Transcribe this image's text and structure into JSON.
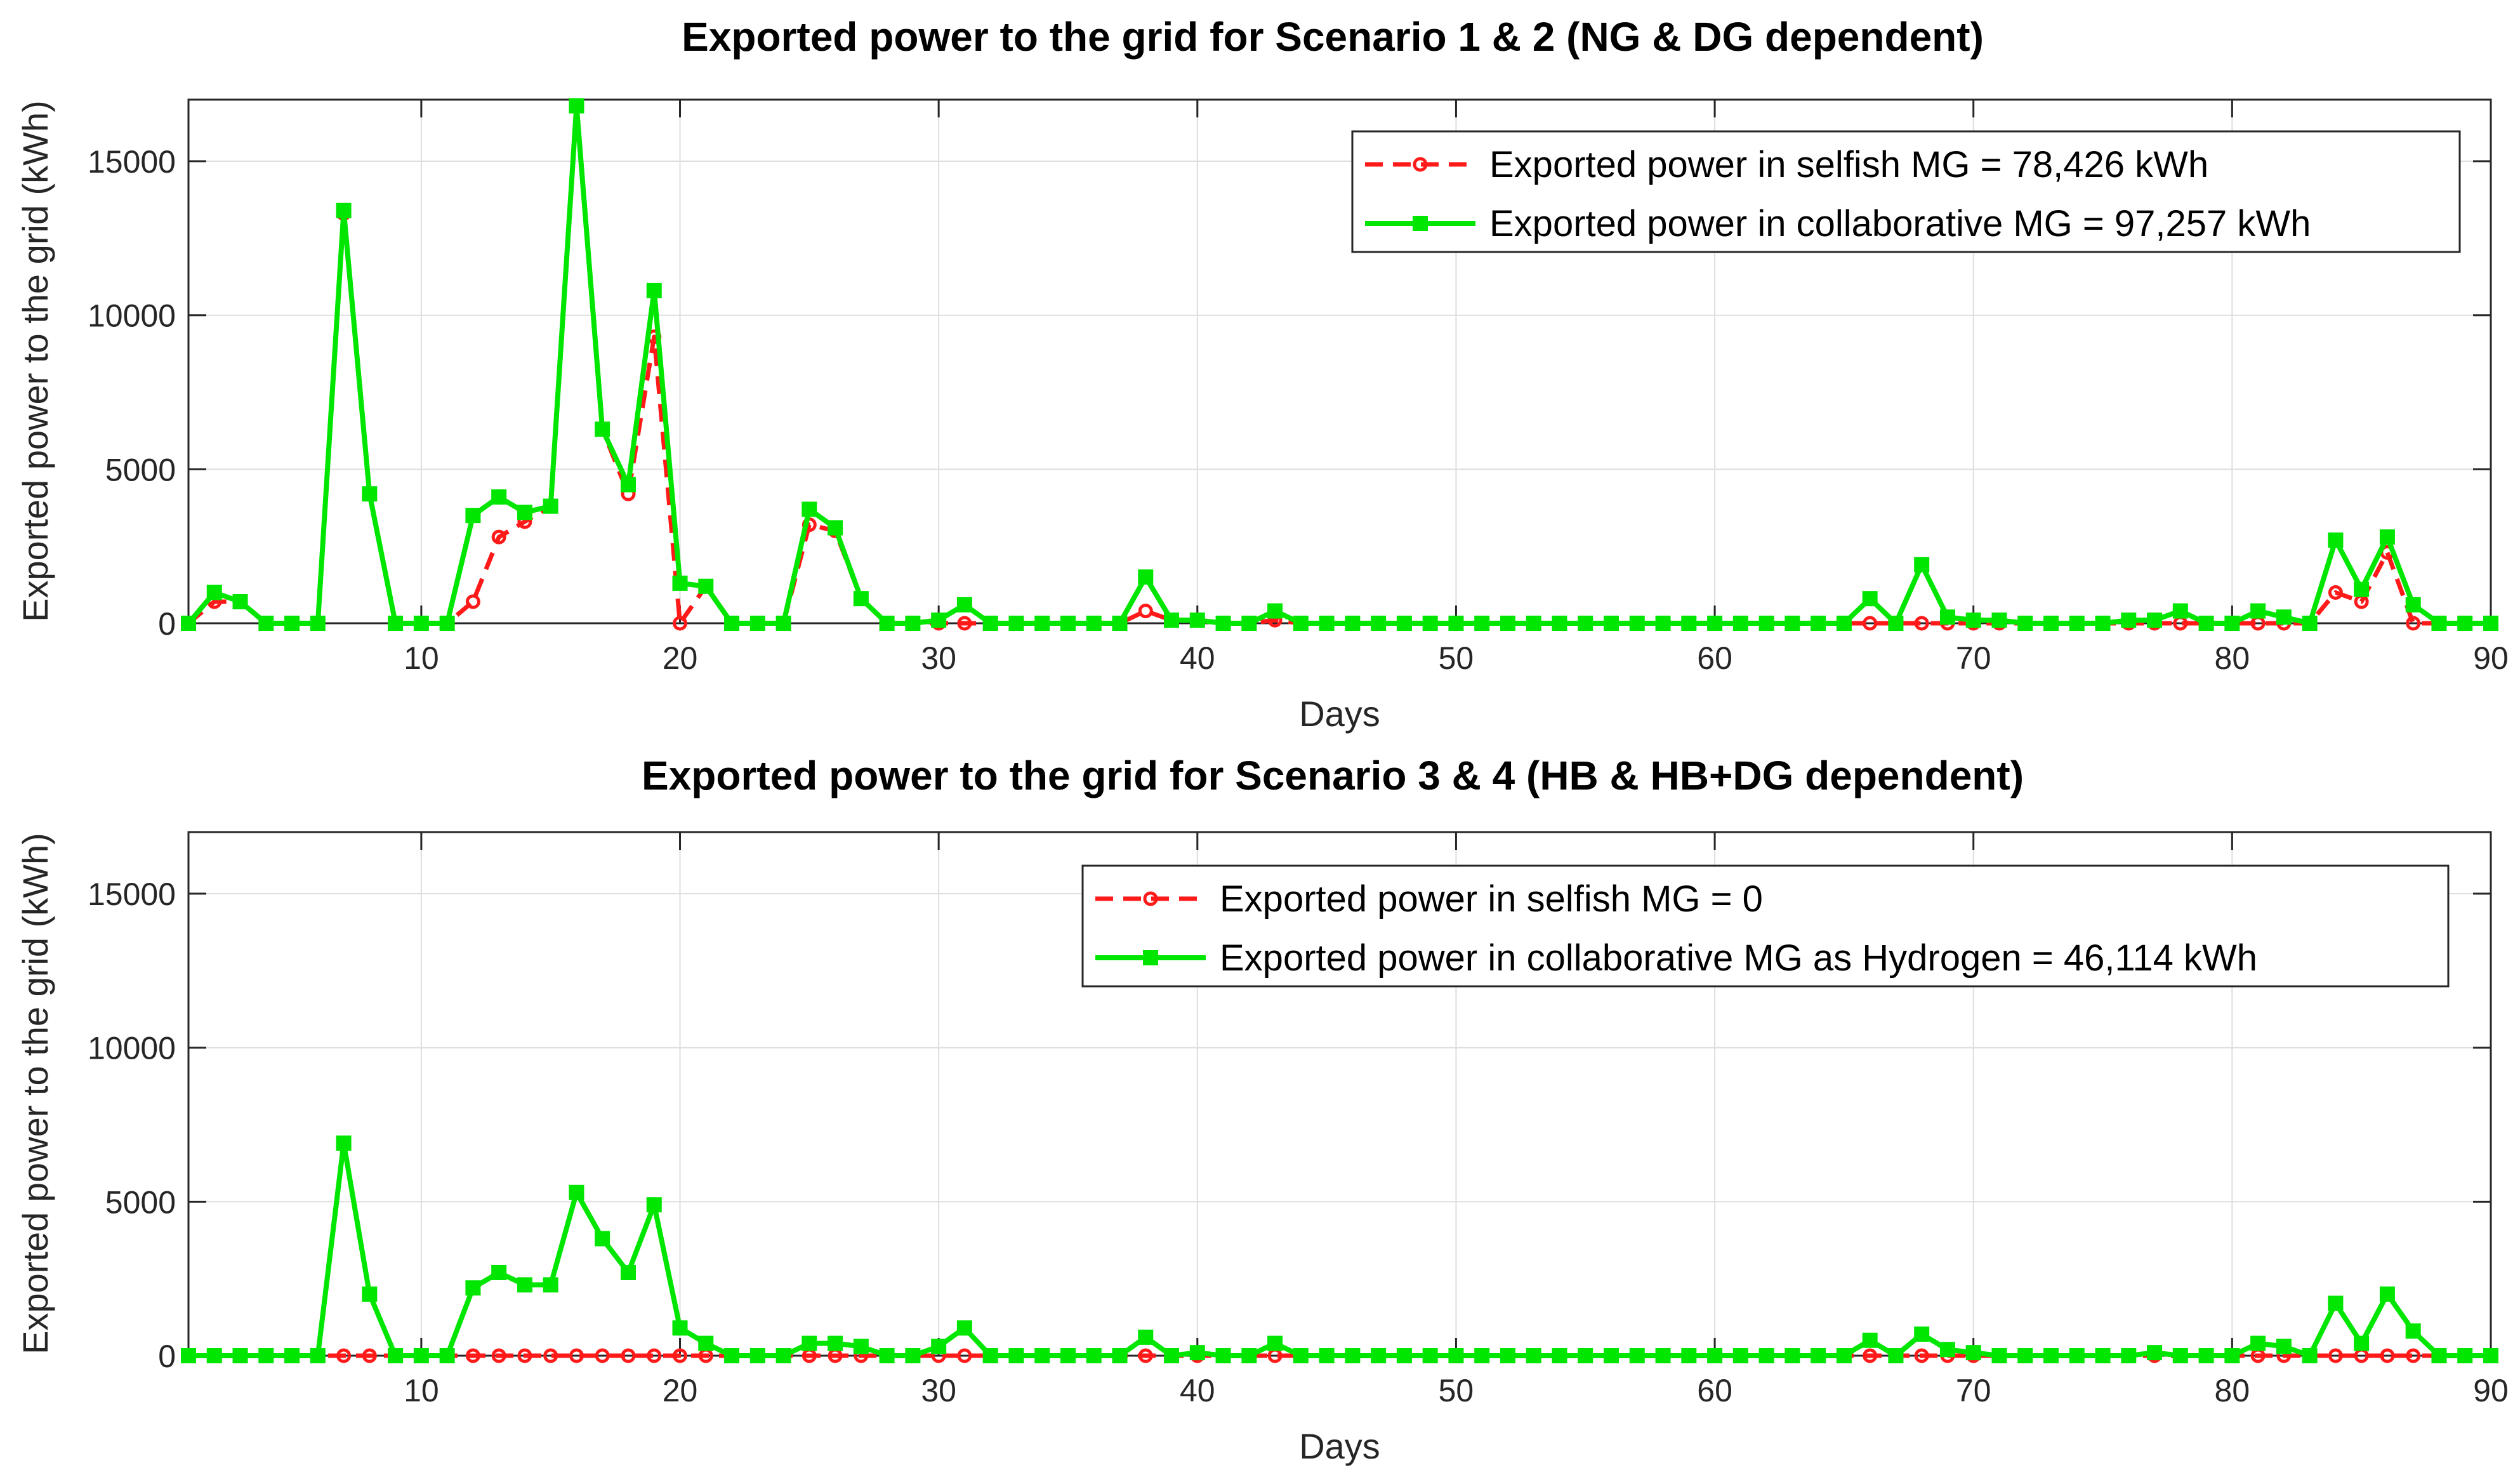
{
  "chart_data": [
    {
      "type": "line",
      "title": "Exported power to the grid for Scenario 1 & 2 (NG & DG dependent)",
      "xlabel": "Days",
      "ylabel": "Exported power to the grid (kWh)",
      "xlim": [
        1,
        90
      ],
      "ylim": [
        0,
        17000
      ],
      "xticks": [
        10,
        20,
        30,
        40,
        50,
        60,
        70,
        80,
        90
      ],
      "yticks": [
        0,
        5000,
        10000,
        15000
      ],
      "grid": true,
      "legend_position": "top-right",
      "x": [
        1,
        2,
        3,
        4,
        5,
        6,
        7,
        8,
        9,
        10,
        11,
        12,
        13,
        14,
        15,
        16,
        17,
        18,
        19,
        20,
        21,
        22,
        23,
        24,
        25,
        26,
        27,
        28,
        29,
        30,
        31,
        32,
        33,
        34,
        35,
        36,
        37,
        38,
        39,
        40,
        41,
        42,
        43,
        44,
        45,
        46,
        47,
        48,
        49,
        50,
        51,
        52,
        53,
        54,
        55,
        56,
        57,
        58,
        59,
        60,
        61,
        62,
        63,
        64,
        65,
        66,
        67,
        68,
        69,
        70,
        71,
        72,
        73,
        74,
        75,
        76,
        77,
        78,
        79,
        80,
        81,
        82,
        83,
        84,
        85,
        86,
        87,
        88,
        89,
        90
      ],
      "series": [
        {
          "name": "Exported power in selfish MG = 78,426 kWh",
          "color": "#ff1a1a",
          "style": "dashed",
          "marker": "circle",
          "values": [
            0,
            700,
            700,
            0,
            0,
            0,
            13300,
            4200,
            0,
            0,
            0,
            700,
            2800,
            3300,
            3800,
            16800,
            6300,
            4200,
            9300,
            0,
            1200,
            0,
            0,
            0,
            3200,
            3000,
            800,
            0,
            0,
            0,
            0,
            0,
            0,
            0,
            0,
            0,
            0,
            400,
            100,
            100,
            0,
            0,
            100,
            0,
            0,
            0,
            0,
            0,
            0,
            0,
            0,
            0,
            0,
            0,
            0,
            0,
            0,
            0,
            0,
            0,
            0,
            0,
            0,
            0,
            0,
            0,
            0,
            0,
            0,
            0,
            0,
            0,
            0,
            0,
            0,
            0,
            0,
            0,
            0,
            0,
            0,
            0,
            0,
            1000,
            700,
            2300,
            0,
            0,
            0,
            0
          ]
        },
        {
          "name": "Exported power in collaborative MG = 97,257 kWh",
          "color": "#00e600",
          "style": "solid",
          "marker": "square",
          "values": [
            0,
            1000,
            700,
            0,
            0,
            0,
            13400,
            4200,
            0,
            0,
            0,
            3500,
            4100,
            3600,
            3800,
            16800,
            6300,
            4500,
            10800,
            1300,
            1200,
            0,
            0,
            0,
            3700,
            3100,
            800,
            0,
            0,
            100,
            600,
            0,
            0,
            0,
            0,
            0,
            0,
            1500,
            100,
            100,
            0,
            0,
            400,
            0,
            0,
            0,
            0,
            0,
            0,
            0,
            0,
            0,
            0,
            0,
            0,
            0,
            0,
            0,
            0,
            0,
            0,
            0,
            0,
            0,
            0,
            800,
            0,
            1900,
            200,
            100,
            100,
            0,
            0,
            0,
            0,
            100,
            100,
            400,
            0,
            0,
            400,
            200,
            0,
            2700,
            1100,
            2800,
            600,
            0,
            0,
            0
          ]
        }
      ]
    },
    {
      "type": "line",
      "title": "Exported power to the grid for Scenario 3 & 4 (HB & HB+DG dependent)",
      "xlabel": "Days",
      "ylabel": "Exported power to the grid (kWh)",
      "xlim": [
        1,
        90
      ],
      "ylim": [
        0,
        17000
      ],
      "xticks": [
        10,
        20,
        30,
        40,
        50,
        60,
        70,
        80,
        90
      ],
      "yticks": [
        0,
        5000,
        10000,
        15000
      ],
      "grid": true,
      "legend_position": "top-right",
      "x": [
        1,
        2,
        3,
        4,
        5,
        6,
        7,
        8,
        9,
        10,
        11,
        12,
        13,
        14,
        15,
        16,
        17,
        18,
        19,
        20,
        21,
        22,
        23,
        24,
        25,
        26,
        27,
        28,
        29,
        30,
        31,
        32,
        33,
        34,
        35,
        36,
        37,
        38,
        39,
        40,
        41,
        42,
        43,
        44,
        45,
        46,
        47,
        48,
        49,
        50,
        51,
        52,
        53,
        54,
        55,
        56,
        57,
        58,
        59,
        60,
        61,
        62,
        63,
        64,
        65,
        66,
        67,
        68,
        69,
        70,
        71,
        72,
        73,
        74,
        75,
        76,
        77,
        78,
        79,
        80,
        81,
        82,
        83,
        84,
        85,
        86,
        87,
        88,
        89,
        90
      ],
      "series": [
        {
          "name": "Exported power in selfish MG = 0",
          "color": "#ff1a1a",
          "style": "dashed",
          "marker": "circle",
          "values": [
            0,
            0,
            0,
            0,
            0,
            0,
            0,
            0,
            0,
            0,
            0,
            0,
            0,
            0,
            0,
            0,
            0,
            0,
            0,
            0,
            0,
            0,
            0,
            0,
            0,
            0,
            0,
            0,
            0,
            0,
            0,
            0,
            0,
            0,
            0,
            0,
            0,
            0,
            0,
            0,
            0,
            0,
            0,
            0,
            0,
            0,
            0,
            0,
            0,
            0,
            0,
            0,
            0,
            0,
            0,
            0,
            0,
            0,
            0,
            0,
            0,
            0,
            0,
            0,
            0,
            0,
            0,
            0,
            0,
            0,
            0,
            0,
            0,
            0,
            0,
            0,
            0,
            0,
            0,
            0,
            0,
            0,
            0,
            0,
            0,
            0,
            0,
            0,
            0,
            0
          ]
        },
        {
          "name": "Exported power in collaborative MG as Hydrogen = 46,114 kWh",
          "color": "#00e600",
          "style": "solid",
          "marker": "square",
          "values": [
            0,
            0,
            0,
            0,
            0,
            0,
            6900,
            2000,
            0,
            0,
            0,
            2200,
            2700,
            2300,
            2300,
            5300,
            3800,
            2700,
            4900,
            900,
            400,
            0,
            0,
            0,
            400,
            400,
            300,
            0,
            0,
            300,
            900,
            0,
            0,
            0,
            0,
            0,
            0,
            600,
            0,
            100,
            0,
            0,
            400,
            0,
            0,
            0,
            0,
            0,
            0,
            0,
            0,
            0,
            0,
            0,
            0,
            0,
            0,
            0,
            0,
            0,
            0,
            0,
            0,
            0,
            0,
            500,
            0,
            700,
            200,
            100,
            0,
            0,
            0,
            0,
            0,
            0,
            100,
            0,
            0,
            0,
            400,
            300,
            0,
            1700,
            400,
            2000,
            800,
            0,
            0,
            0
          ]
        }
      ]
    }
  ]
}
